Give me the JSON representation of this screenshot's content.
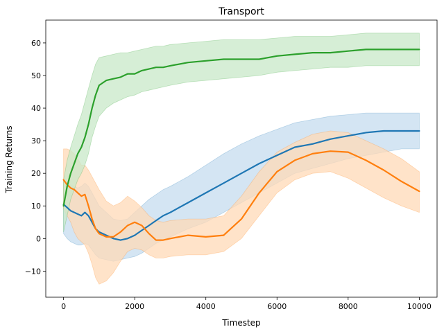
{
  "chart_data": {
    "type": "line",
    "title": "Transport",
    "xlabel": "Timestep",
    "ylabel": "Training Returns",
    "xlim": [
      -500,
      10500
    ],
    "ylim": [
      -18,
      67
    ],
    "xticks": [
      0,
      2000,
      4000,
      6000,
      8000,
      10000
    ],
    "xtick_labels": [
      "0",
      "2000",
      "4000",
      "6000",
      "8000",
      "10000"
    ],
    "yticks": [
      -10,
      0,
      10,
      20,
      30,
      40,
      50,
      60
    ],
    "ytick_labels": [
      "−10",
      "0",
      "10",
      "20",
      "30",
      "40",
      "50",
      "60"
    ],
    "grid": false,
    "legend": "none",
    "x": [
      0,
      100,
      200,
      300,
      400,
      500,
      600,
      700,
      800,
      900,
      1000,
      1200,
      1400,
      1600,
      1800,
      2000,
      2200,
      2400,
      2600,
      2800,
      3000,
      3500,
      4000,
      4500,
      5000,
      5500,
      6000,
      6500,
      7000,
      7500,
      8000,
      8500,
      9000,
      9500,
      10000
    ],
    "series": [
      {
        "color": "#1f77b4",
        "fill": "#c6dcef",
        "values": [
          10.5,
          9.5,
          8.5,
          8,
          7.5,
          7,
          8,
          7,
          5,
          3,
          2,
          1,
          0,
          -0.5,
          0,
          1,
          2.5,
          4,
          5.5,
          7,
          8,
          11,
          14,
          17,
          20,
          23,
          25.5,
          28,
          29,
          30.5,
          31.5,
          32.5,
          33,
          33,
          33
        ],
        "lower": [
          1.5,
          0,
          -1,
          -1.5,
          -2,
          -2,
          -1.5,
          -2,
          -3.5,
          -5,
          -6,
          -6.5,
          -7,
          -6.5,
          -6,
          -5.5,
          -4.5,
          -3,
          -1.5,
          -0.5,
          0.5,
          3,
          5,
          8,
          11,
          14,
          17,
          20,
          21.5,
          23,
          24.5,
          25.5,
          26.5,
          27.5,
          27.5
        ],
        "upper": [
          18,
          17,
          16.5,
          16,
          15.5,
          16,
          17,
          16,
          14,
          12,
          10,
          8,
          6,
          5.5,
          6,
          8,
          10,
          12,
          13.5,
          15,
          16,
          19,
          22.5,
          26,
          29,
          31.5,
          33.5,
          35.5,
          36.5,
          37.5,
          38,
          38.5,
          38.5,
          38.5,
          38.5
        ]
      },
      {
        "color": "#ff7f0e",
        "fill": "#ffd9b7",
        "values": [
          18,
          16.5,
          15.5,
          15,
          14,
          13,
          13.5,
          10,
          6,
          3,
          1.5,
          0.5,
          0.5,
          2,
          4,
          5,
          4,
          1.5,
          -0.5,
          -0.5,
          0,
          1,
          0.5,
          1,
          6,
          14,
          20.5,
          24,
          26,
          26.8,
          26.5,
          24,
          21,
          17.5,
          14.5
        ],
        "lower": [
          9,
          7,
          5,
          2,
          0,
          -1,
          -2,
          -4.5,
          -8,
          -12,
          -14,
          -13,
          -10.5,
          -7,
          -4,
          -3,
          -3.5,
          -5,
          -6,
          -6,
          -5.5,
          -5,
          -5,
          -4,
          0,
          7,
          14,
          18,
          20,
          20.5,
          18.5,
          15.5,
          12.5,
          10,
          8
        ],
        "upper": [
          27.5,
          27.5,
          27,
          26,
          24.5,
          22.5,
          22.5,
          21,
          19,
          17,
          15,
          11.5,
          10,
          11,
          13,
          11.5,
          9.5,
          7,
          5.5,
          5,
          5.5,
          6,
          6,
          7,
          13,
          20.5,
          26.5,
          29.5,
          32,
          33,
          32.5,
          30,
          27.5,
          24.5,
          20.5
        ]
      },
      {
        "color": "#2ca02c",
        "fill": "#c8e8c8",
        "values": [
          10,
          16,
          20,
          23,
          26,
          28,
          31,
          35,
          40,
          44,
          47,
          48.5,
          49,
          49.5,
          50.5,
          50.5,
          51.5,
          52,
          52.5,
          52.5,
          53,
          54,
          54.5,
          55,
          55,
          55,
          56,
          56.5,
          57,
          57,
          57.5,
          58,
          58,
          58,
          58
        ],
        "lower": [
          2,
          7,
          12,
          15,
          18,
          20,
          22.5,
          26,
          31,
          34.5,
          37.5,
          40,
          41.5,
          42.5,
          43.5,
          44,
          45,
          45.5,
          46,
          46.5,
          47,
          48,
          48.5,
          49,
          49.5,
          50,
          51,
          51.5,
          52,
          52.5,
          52.5,
          53,
          53,
          53,
          53
        ],
        "upper": [
          18,
          24,
          28,
          31.5,
          35,
          38,
          42,
          46,
          50,
          53.5,
          55.5,
          56,
          56.5,
          57,
          57,
          57.5,
          58,
          58.5,
          59,
          59,
          59.5,
          60,
          60.5,
          61,
          61,
          61,
          61.5,
          62,
          62,
          62,
          62.5,
          63,
          63,
          63,
          63
        ]
      }
    ]
  }
}
